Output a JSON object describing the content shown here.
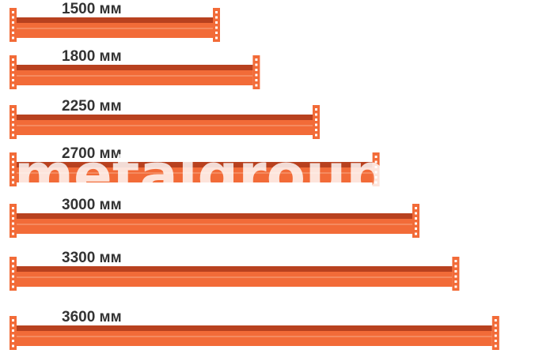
{
  "colors": {
    "beam_orange": "#f26b38",
    "beam_dark_stripe": "#b8411f",
    "end_plate": "#f26b38",
    "label_text": "#333333"
  },
  "beams": [
    {
      "label": "1500 мм",
      "length_mm": 1500
    },
    {
      "label": "1800 мм",
      "length_mm": 1800
    },
    {
      "label": "2250 мм",
      "length_mm": 2250
    },
    {
      "label": "2700 мм",
      "length_mm": 2700
    },
    {
      "label": "3000 мм",
      "length_mm": 3000
    },
    {
      "label": "3300 мм",
      "length_mm": 3300
    },
    {
      "label": "3600 мм",
      "length_mm": 3600
    }
  ],
  "watermark": "metalgroup.kz"
}
